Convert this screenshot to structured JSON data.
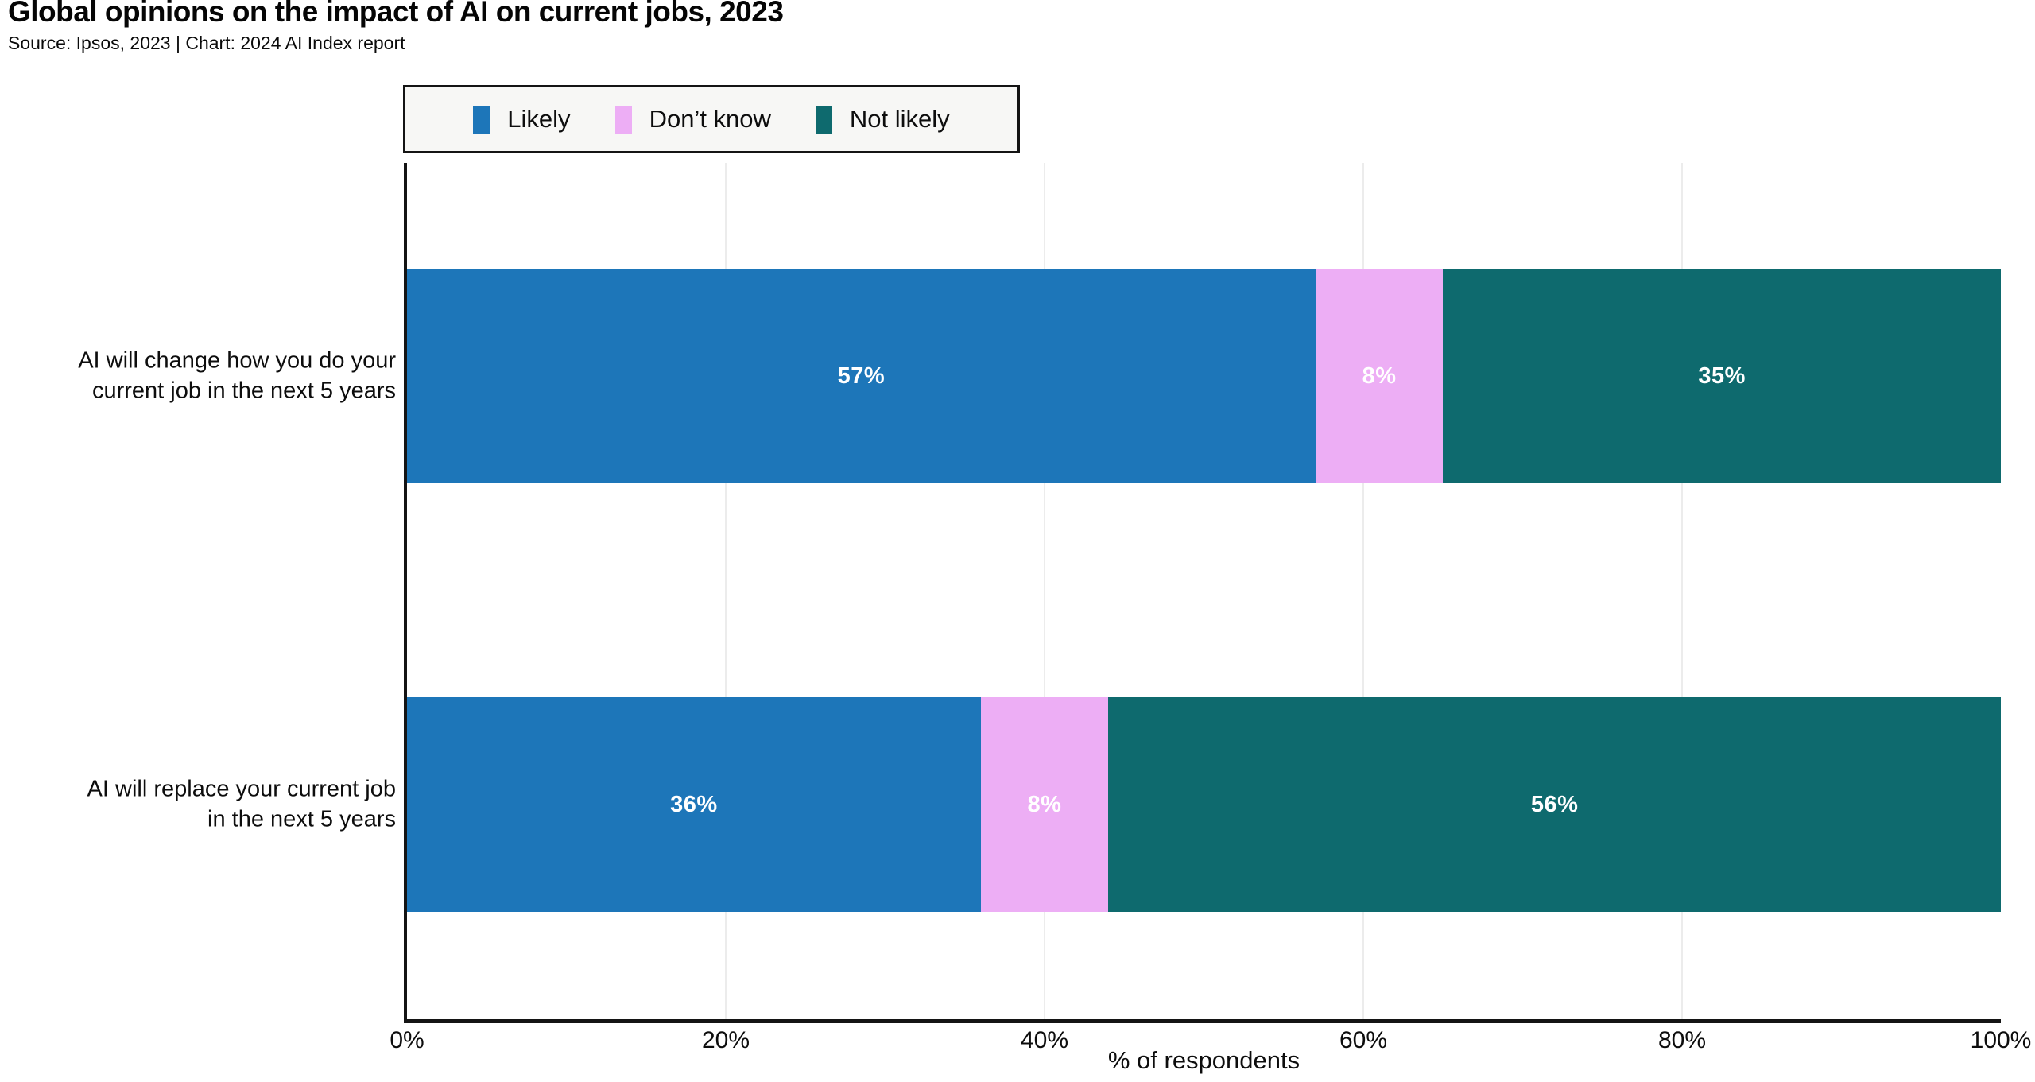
{
  "header": {
    "title": "Global opinions on the impact of AI on current jobs, 2023",
    "subtitle": "Source: Ipsos, 2023 | Chart: 2024 AI Index report"
  },
  "colors": {
    "likely": "#1d76b9",
    "dont_know": "#edaef5",
    "not_likely": "#0e6a6e",
    "axis": "#141414",
    "gridline": "#ececec",
    "legend_background": "#f7f7f5"
  },
  "chart_data": {
    "type": "bar",
    "orientation": "horizontal",
    "stacked": true,
    "title": "Global opinions on the impact of AI on current jobs, 2023",
    "subtitle": "Source: Ipsos, 2023 | Chart: 2024 AI Index report",
    "categories": [
      "AI will change how you do your\ncurrent job in the next 5 years",
      "AI will replace your current job\nin the next 5 years"
    ],
    "series": [
      {
        "name": "Likely",
        "color": "#1d76b9",
        "values": [
          57,
          36
        ]
      },
      {
        "name": "Don’t know",
        "color": "#edaef5",
        "values": [
          8,
          8
        ]
      },
      {
        "name": "Not likely",
        "color": "#0e6a6e",
        "values": [
          35,
          56
        ]
      }
    ],
    "value_label_suffix": "%",
    "xlabel": "% of respondents",
    "xlim": [
      0,
      100
    ],
    "x_ticks": [
      {
        "value": 0,
        "label": "0%"
      },
      {
        "value": 20,
        "label": "20%"
      },
      {
        "value": 40,
        "label": "40%"
      },
      {
        "value": 60,
        "label": "60%"
      },
      {
        "value": 80,
        "label": "80%"
      },
      {
        "value": 100,
        "label": "100%"
      }
    ],
    "grid": true,
    "legend_position": "top"
  }
}
